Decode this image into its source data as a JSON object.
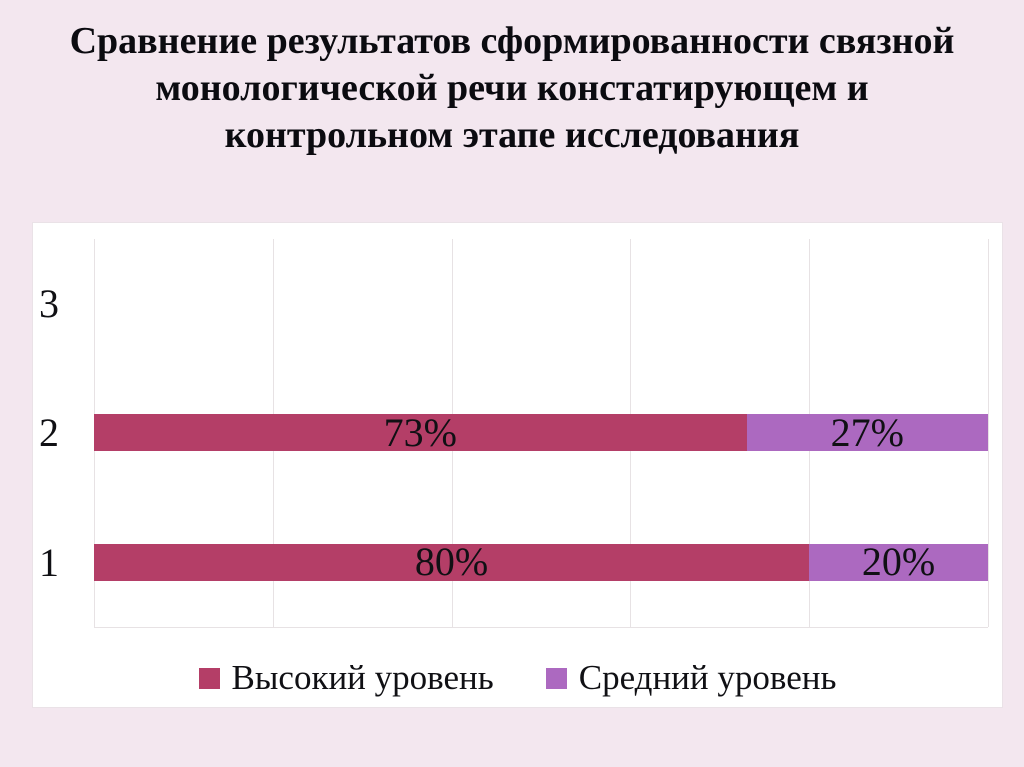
{
  "slide": {
    "background_color": "#F3E7EF",
    "title": "Сравнение результатов сформированности связной монологической речи констатирующем и контрольном этапе исследования",
    "title_color": "#0B0B10"
  },
  "chart_data": {
    "type": "bar",
    "orientation": "horizontal",
    "stacked": true,
    "unit": "%",
    "title": "",
    "xlabel": "",
    "ylabel": "",
    "xlim": [
      0,
      100
    ],
    "gridline_step": 20,
    "grid": true,
    "legend_position": "bottom",
    "categories": [
      "3",
      "2",
      "1"
    ],
    "series": [
      {
        "name": "Высокий уровень",
        "color": "#B43E67",
        "values": [
          0,
          73,
          80
        ]
      },
      {
        "name": "Средний уровень",
        "color": "#AC69C0",
        "values": [
          0,
          27,
          20
        ]
      }
    ],
    "data_labels_shown": [
      "73%",
      "27%",
      "80%",
      "20%"
    ],
    "panel_background": "#FFFFFF",
    "gridline_color": "#E7E2E4",
    "label_color": "#101014"
  }
}
